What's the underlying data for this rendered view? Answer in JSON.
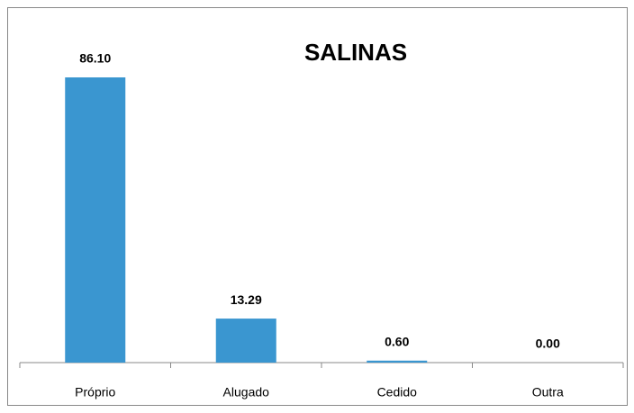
{
  "chart_data": {
    "type": "bar",
    "title": "SALINAS",
    "categories": [
      "Próprio",
      "Alugado",
      "Cedido",
      "Outra"
    ],
    "values": [
      86.1,
      13.29,
      0.6,
      0.0
    ],
    "value_labels": [
      "86.10",
      "13.29",
      "0.60",
      "0.00"
    ],
    "color": "#3a96d0"
  }
}
